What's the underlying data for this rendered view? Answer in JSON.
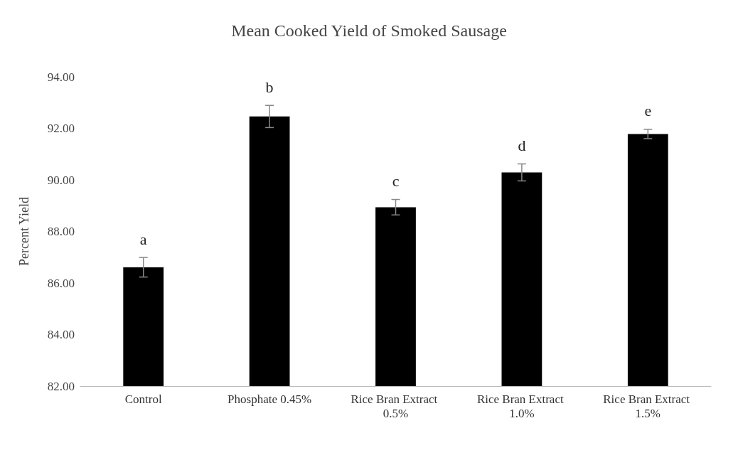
{
  "chart_data": {
    "type": "bar",
    "title": "Mean Cooked Yield of Smoked Sausage",
    "ylabel": "Percent Yield",
    "categories": [
      "Control",
      "Phosphate 0.45%",
      "Rice Bran Extract 0.5%",
      "Rice Bran Extract 1.0%",
      "Rice Bran Extract 1.5%"
    ],
    "values": [
      86.61,
      92.46,
      88.94,
      90.29,
      91.78
    ],
    "errors": [
      0.38,
      0.43,
      0.3,
      0.33,
      0.18
    ],
    "color": "#000000",
    "ylim": [
      82,
      94
    ],
    "yticks": [
      {
        "value": 82,
        "label": "82.00"
      },
      {
        "value": 84,
        "label": "84.00"
      },
      {
        "value": 86,
        "label": "86.00"
      },
      {
        "value": 88,
        "label": "88.00"
      },
      {
        "value": 90,
        "label": "90.00"
      },
      {
        "value": 92,
        "label": "92.00"
      },
      {
        "value": 94,
        "label": "94.00"
      }
    ],
    "grid": false,
    "annotations": [
      "a",
      "b",
      "c",
      "d",
      "e"
    ]
  }
}
